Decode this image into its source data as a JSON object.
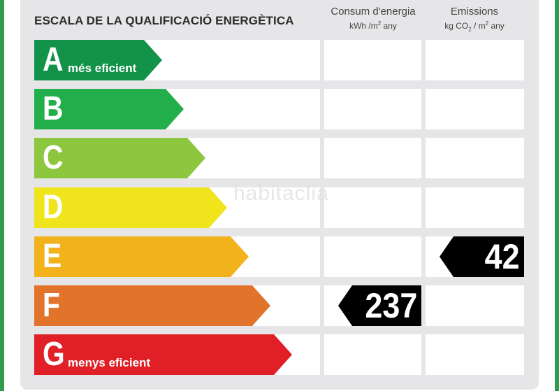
{
  "title": "ESCALA DE LA QUALIFICACIÓ ENERGÈTICA",
  "columns": {
    "consumption": {
      "label": "Consum d'energia",
      "unit_pre": "kWh /m",
      "unit_sup": "2",
      "unit_post": " any"
    },
    "emissions": {
      "label": "Emissions",
      "unit_pre": "kg CO",
      "unit_sub": "2",
      "unit_mid": " / m",
      "unit_sup": "2",
      "unit_post": " any"
    }
  },
  "classes": [
    {
      "letter": "A",
      "note": "més eficient",
      "color": "#13934a"
    },
    {
      "letter": "B",
      "note": "",
      "color": "#22ae4a"
    },
    {
      "letter": "C",
      "note": "",
      "color": "#8dc63f"
    },
    {
      "letter": "D",
      "note": "",
      "color": "#f0e51c"
    },
    {
      "letter": "E",
      "note": "",
      "color": "#f2b21c"
    },
    {
      "letter": "F",
      "note": "",
      "color": "#e2732a"
    },
    {
      "letter": "G",
      "note": "menys eficient",
      "color": "#e01f26"
    }
  ],
  "consumption_rating": {
    "class": "F",
    "value": "237"
  },
  "emissions_rating": {
    "class": "E",
    "value": "42"
  },
  "watermark": "habitaclia"
}
